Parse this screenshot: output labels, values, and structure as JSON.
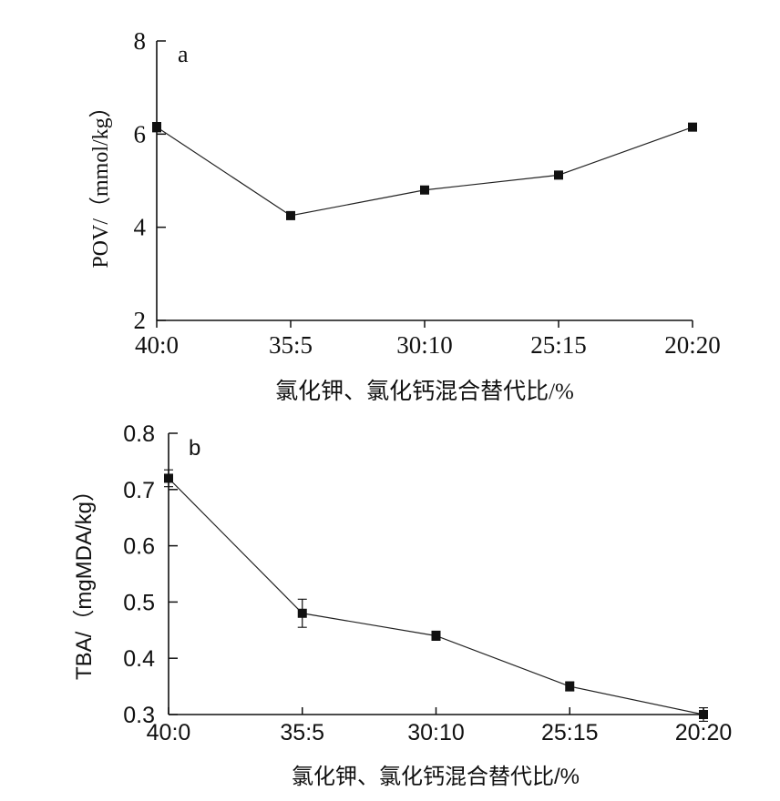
{
  "chart_data": [
    {
      "panel": "a",
      "type": "line",
      "categories": [
        "40:0",
        "35:5",
        "30:10",
        "25:15",
        "20:20"
      ],
      "values": [
        6.15,
        4.25,
        4.8,
        5.12,
        6.15
      ],
      "errors": [
        0.1,
        0.08,
        0.08,
        0.08,
        0.08
      ],
      "xlabel": "氯化钾、氯化钙混合替代比/%",
      "ylabel": "POV/（mmol/kg）",
      "ylim": [
        2,
        8
      ],
      "yticks": [
        "2",
        "4",
        "6",
        "8"
      ],
      "marker": "square",
      "line_color": "#222222",
      "grid": false
    },
    {
      "panel": "b",
      "type": "line",
      "categories": [
        "40:0",
        "35:5",
        "30:10",
        "25:15",
        "20:20"
      ],
      "values": [
        0.72,
        0.48,
        0.44,
        0.35,
        0.3
      ],
      "errors": [
        0.015,
        0.025,
        0.008,
        0.008,
        0.012
      ],
      "xlabel": "氯化钾、氯化钙混合替代比/%",
      "ylabel": "TBA/（mgMDA/kg）",
      "ylim": [
        0.3,
        0.8
      ],
      "yticks": [
        "0.3",
        "0.4",
        "0.5",
        "0.6",
        "0.7",
        "0.8"
      ],
      "marker": "square",
      "line_color": "#222222",
      "grid": false
    }
  ]
}
